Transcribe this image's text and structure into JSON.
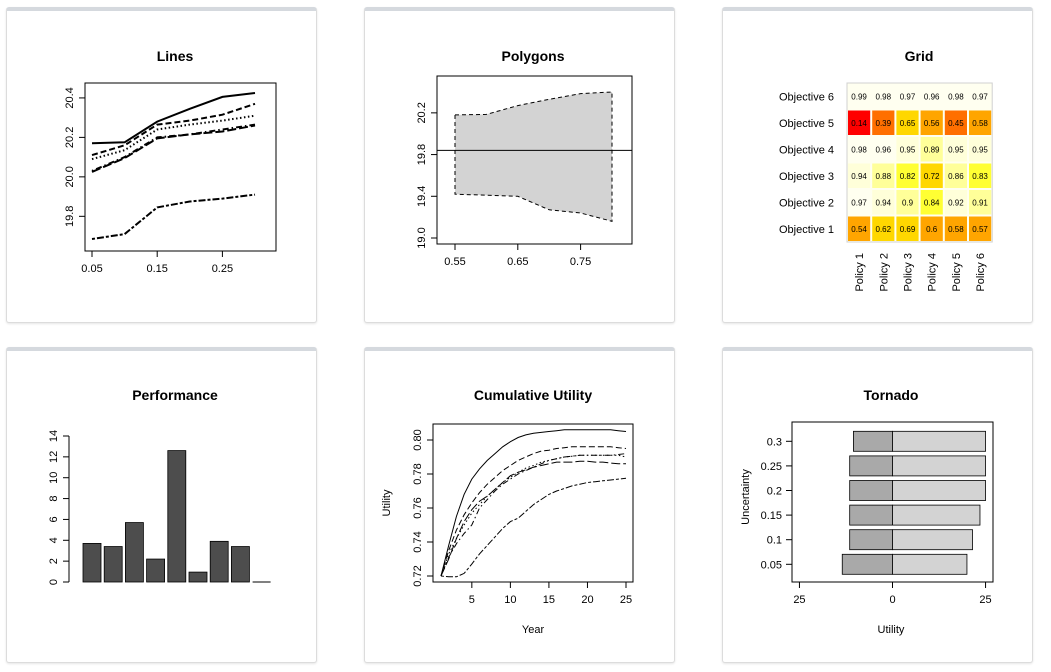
{
  "colors": {
    "card_border": "#d5d9de",
    "bar_fill": "#4d4d4d",
    "band_fill": "#d3d3d3",
    "tornado_low": "#a9a9a9",
    "tornado_high": "#d3d3d3"
  },
  "chart_data": [
    {
      "id": "lines",
      "type": "line",
      "title": "Lines",
      "x": [
        0.05,
        0.1,
        0.15,
        0.2,
        0.25,
        0.3
      ],
      "xticks": [
        "0.05",
        "0.15",
        "0.25"
      ],
      "yticks": [
        "19.8",
        "20.0",
        "20.2",
        "20.4"
      ],
      "xlim": [
        0.05,
        0.3
      ],
      "ylim": [
        19.68,
        20.43
      ],
      "series": [
        {
          "dash": "solid",
          "values": [
            20.17,
            20.175,
            20.28,
            20.345,
            20.405,
            20.425
          ]
        },
        {
          "dash": "dashed",
          "values": [
            20.11,
            20.16,
            20.265,
            20.285,
            20.315,
            20.37
          ]
        },
        {
          "dash": "dotted",
          "values": [
            20.09,
            20.135,
            20.24,
            20.265,
            20.285,
            20.31
          ]
        },
        {
          "dash": "dotdash",
          "values": [
            20.03,
            20.1,
            20.2,
            20.215,
            20.24,
            20.265
          ]
        },
        {
          "dash": "longdash",
          "values": [
            20.025,
            20.095,
            20.195,
            20.215,
            20.23,
            20.26
          ]
        },
        {
          "dash": "twodash",
          "values": [
            19.685,
            19.71,
            19.845,
            19.875,
            19.89,
            19.91
          ]
        }
      ]
    },
    {
      "id": "polygons",
      "type": "area",
      "title": "Polygons",
      "x": [
        0.55,
        0.6,
        0.65,
        0.7,
        0.75,
        0.8
      ],
      "xticks": [
        "0.55",
        "0.65",
        "0.75"
      ],
      "yticks": [
        "19.0",
        "19.4",
        "19.8",
        "20.2"
      ],
      "xlim": [
        0.55,
        0.8
      ],
      "ylim": [
        19.0,
        20.4
      ],
      "upper": [
        20.18,
        20.185,
        20.27,
        20.33,
        20.385,
        20.4
      ],
      "lower": [
        19.42,
        19.41,
        19.4,
        19.27,
        19.24,
        19.16
      ],
      "hline": 19.84
    },
    {
      "id": "grid",
      "type": "heatmap",
      "title": "Grid",
      "rows": [
        "Objective 6",
        "Objective 5",
        "Objective 4",
        "Objective 3",
        "Objective 2",
        "Objective 1"
      ],
      "columns": [
        "Policy 1",
        "Policy 2",
        "Policy 3",
        "Policy 4",
        "Policy 5",
        "Policy 6"
      ],
      "values": [
        [
          0.99,
          0.98,
          0.97,
          0.96,
          0.98,
          0.97
        ],
        [
          0.14,
          0.39,
          0.65,
          0.56,
          0.45,
          0.58
        ],
        [
          0.98,
          0.96,
          0.95,
          0.89,
          0.95,
          0.95
        ],
        [
          0.94,
          0.88,
          0.82,
          0.72,
          0.86,
          0.83
        ],
        [
          0.97,
          0.94,
          0.9,
          0.84,
          0.92,
          0.91
        ],
        [
          0.54,
          0.62,
          0.69,
          0.6,
          0.58,
          0.57
        ]
      ]
    },
    {
      "id": "performance",
      "type": "bar",
      "title": "Performance",
      "values": [
        3.7,
        3.4,
        5.7,
        2.2,
        12.6,
        0.95,
        3.9,
        3.4,
        0.0
      ],
      "yticks": [
        "0",
        "2",
        "4",
        "6",
        "8",
        "10",
        "12",
        "14"
      ],
      "ylim": [
        0,
        14
      ]
    },
    {
      "id": "cumulative",
      "type": "line",
      "title": "Cumulative Utility",
      "xlabel": "Year",
      "ylabel": "Utility",
      "xticks": [
        "5",
        "10",
        "15",
        "20",
        "25"
      ],
      "yticks": [
        "0.72",
        "0.74",
        "0.76",
        "0.78",
        "0.80"
      ],
      "xlim": [
        1,
        25
      ],
      "ylim": [
        0.72,
        0.8
      ],
      "x": [
        1,
        2,
        3,
        4,
        5,
        6,
        7,
        8,
        9,
        10,
        11,
        12,
        13,
        14,
        15,
        16,
        17,
        18,
        19,
        20,
        21,
        22,
        23,
        24,
        25
      ],
      "series": [
        {
          "dash": "solid",
          "values": [
            0.72,
            0.738,
            0.755,
            0.768,
            0.777,
            0.783,
            0.788,
            0.792,
            0.796,
            0.799,
            0.8015,
            0.803,
            0.804,
            0.8045,
            0.805,
            0.8055,
            0.806,
            0.806,
            0.806,
            0.806,
            0.806,
            0.806,
            0.806,
            0.8055,
            0.805
          ]
        },
        {
          "dash": "dashed",
          "values": [
            0.72,
            0.735,
            0.747,
            0.756,
            0.763,
            0.769,
            0.774,
            0.778,
            0.782,
            0.785,
            0.788,
            0.79,
            0.792,
            0.7935,
            0.794,
            0.795,
            0.7955,
            0.796,
            0.796,
            0.796,
            0.796,
            0.796,
            0.796,
            0.7955,
            0.795
          ]
        },
        {
          "dash": "dotted",
          "values": [
            0.72,
            0.733,
            0.742,
            0.75,
            0.757,
            0.762,
            0.767,
            0.771,
            0.775,
            0.778,
            0.781,
            0.7835,
            0.785,
            0.787,
            0.788,
            0.789,
            0.79,
            0.7905,
            0.791,
            0.791,
            0.791,
            0.791,
            0.791,
            0.791,
            0.79
          ]
        },
        {
          "dash": "dotdash",
          "values": [
            0.72,
            0.731,
            0.739,
            0.745,
            0.75,
            0.76,
            0.765,
            0.77,
            0.774,
            0.777,
            0.78,
            0.782,
            0.784,
            0.786,
            0.788,
            0.789,
            0.79,
            0.7905,
            0.791,
            0.791,
            0.791,
            0.791,
            0.791,
            0.7915,
            0.792
          ]
        },
        {
          "dash": "longdash",
          "values": [
            0.72,
            0.73,
            0.742,
            0.752,
            0.759,
            0.764,
            0.767,
            0.771,
            0.775,
            0.779,
            0.781,
            0.7825,
            0.784,
            0.785,
            0.786,
            0.787,
            0.787,
            0.787,
            0.7875,
            0.7875,
            0.787,
            0.787,
            0.7865,
            0.786,
            0.786
          ]
        },
        {
          "dash": "twodash",
          "values": [
            0.72,
            0.7195,
            0.7195,
            0.7215,
            0.727,
            0.733,
            0.738,
            0.743,
            0.748,
            0.752,
            0.754,
            0.758,
            0.762,
            0.765,
            0.768,
            0.77,
            0.7715,
            0.773,
            0.774,
            0.775,
            0.7755,
            0.776,
            0.7765,
            0.777,
            0.7775
          ]
        }
      ]
    },
    {
      "id": "tornado",
      "type": "bar",
      "orientation": "horizontal",
      "title": "Tornado",
      "xlabel": "Utility",
      "ylabel": "Uncertainty",
      "categories": [
        "0.3",
        "0.25",
        "0.2",
        "0.15",
        "0.1",
        "0.05"
      ],
      "low": [
        -10.5,
        -11.5,
        -11.5,
        -11.5,
        -11.5,
        -13.5
      ],
      "high": [
        25,
        25,
        25,
        23.5,
        21.5,
        20
      ],
      "xticks": [
        "25",
        "0",
        "25"
      ],
      "xlim": [
        -27,
        27
      ]
    }
  ]
}
